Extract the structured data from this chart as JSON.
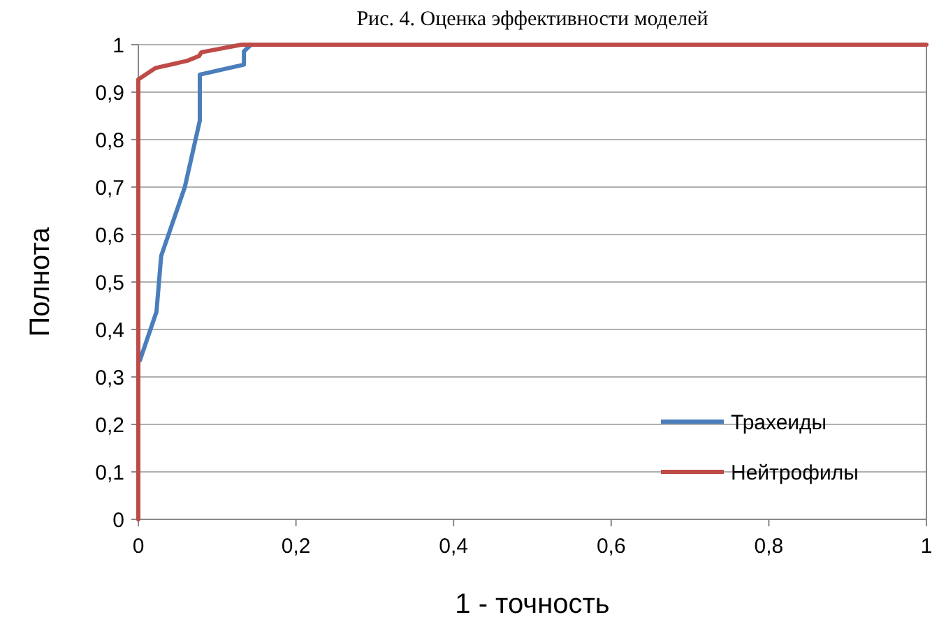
{
  "chart_data": {
    "type": "line",
    "title": "Рис. 4. Оценка эффективности моделей",
    "xlabel": "1 - точность",
    "ylabel": "Полнота",
    "series": [
      {
        "name": "Трахеиды",
        "color": "#4a7ebb",
        "x": [
          0.002,
          0.023,
          0.029,
          0.059,
          0.078,
          0.078,
          0.134,
          0.134,
          0.143
        ],
        "values": [
          0.335,
          0.437,
          0.555,
          0.7,
          0.84,
          0.937,
          0.958,
          0.986,
          1
        ]
      },
      {
        "name": "Нейтрофилы",
        "color": "#be4b48",
        "x": [
          0,
          0,
          0.022,
          0.062,
          0.077,
          0.08,
          0.131,
          1
        ],
        "values": [
          0,
          0.927,
          0.951,
          0.966,
          0.976,
          0.984,
          1,
          1
        ]
      }
    ],
    "xlim": [
      0,
      1
    ],
    "ylim": [
      0,
      1
    ],
    "xticks": [
      0,
      {
        "value": 0.2,
        "label": "0,2"
      },
      {
        "value": 0.4,
        "label": "0,4"
      },
      {
        "value": 0.6,
        "label": "0,6"
      },
      {
        "value": 0.8,
        "label": "0,8"
      },
      1
    ],
    "yticks": [
      0,
      {
        "value": 0.1,
        "label": "0,1"
      },
      {
        "value": 0.2,
        "label": "0,2"
      },
      {
        "value": 0.3,
        "label": "0,3"
      },
      {
        "value": 0.4,
        "label": "0,4"
      },
      {
        "value": 0.5,
        "label": "0,5"
      },
      {
        "value": 0.6,
        "label": "0,6"
      },
      {
        "value": 0.7,
        "label": "0,7"
      },
      {
        "value": 0.8,
        "label": "0,8"
      },
      {
        "value": 0.9,
        "label": "0,9"
      },
      1
    ],
    "grid": "y",
    "legend": "bottom right",
    "marker": "none",
    "line_style": "solid"
  }
}
